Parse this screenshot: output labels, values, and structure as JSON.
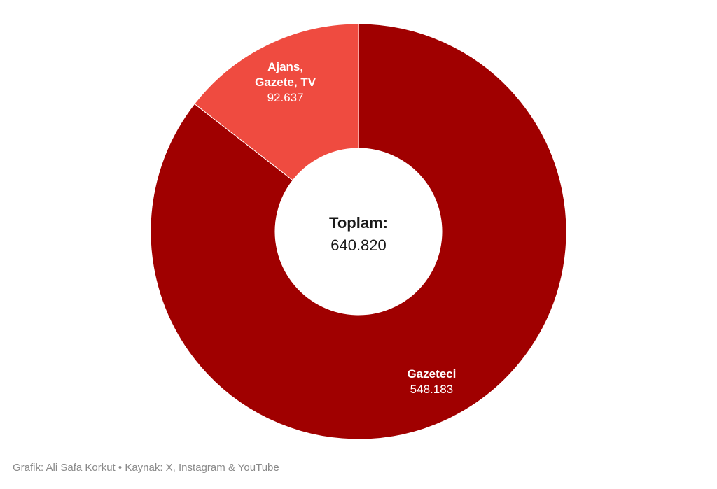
{
  "chart_data": {
    "type": "pie",
    "variant": "donut",
    "slices": [
      {
        "label_lines": [
          "Gazeteci"
        ],
        "value": 548183,
        "display_value": "548.183",
        "color": "#a00000"
      },
      {
        "label_lines": [
          "Ajans,",
          "Gazete, TV"
        ],
        "value": 92637,
        "display_value": "92.637",
        "color": "#ef4b40"
      }
    ],
    "center_label": "Toplam:",
    "center_value": "640.820",
    "start_angle_deg": 0,
    "direction": "clockwise"
  },
  "footer": {
    "text": "Grafik: Ali Safa Korkut • Kaynak: X, Instagram & YouTube"
  }
}
